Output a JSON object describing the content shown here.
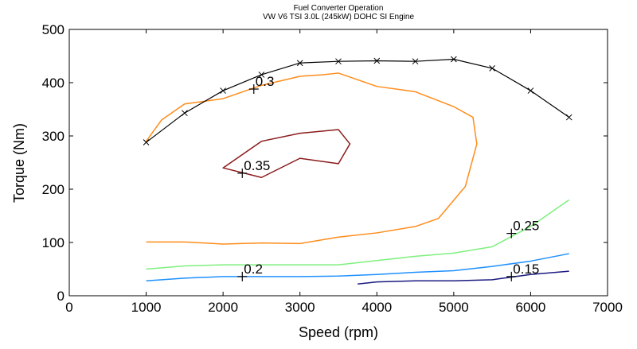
{
  "chart_data": {
    "type": "line",
    "title": "Fuel Converter Operation",
    "subtitle": "VW V6 TSI 3.0L (245kW) DOHC SI Engine",
    "xlabel": "Speed (rpm)",
    "ylabel": "Torque (Nm)",
    "xlim": [
      0,
      7000
    ],
    "ylim": [
      0,
      500
    ],
    "xticks": [
      0,
      1000,
      2000,
      3000,
      4000,
      5000,
      6000,
      7000
    ],
    "yticks": [
      0,
      100,
      200,
      300,
      400,
      500
    ],
    "grid": false,
    "max_torque_curve": {
      "color": "#000000",
      "marker": "x",
      "x": [
        1000,
        1500,
        2000,
        2500,
        3000,
        3500,
        4000,
        4500,
        5000,
        5500,
        6000,
        6500
      ],
      "y": [
        288,
        343,
        385,
        415,
        437,
        440,
        441,
        440,
        444,
        427,
        385,
        335
      ]
    },
    "contours": [
      {
        "level": "0.35",
        "color": "#8b1a1a",
        "closed": true,
        "x": [
          2000,
          2500,
          3000,
          3500,
          3650,
          3500,
          3000,
          2500,
          2000
        ],
        "y": [
          240,
          290,
          305,
          312,
          285,
          248,
          258,
          222,
          240
        ],
        "label_x": 2250,
        "label_y": 230
      },
      {
        "level": "0.3",
        "color": "#ff8c1a",
        "closed": false,
        "x": [
          1000,
          1200,
          1500,
          2000,
          2500,
          3000,
          3300,
          3500,
          4000,
          4500,
          5000,
          5250,
          5300,
          5150,
          4800,
          4500,
          4000,
          3500,
          3000,
          2500,
          2000,
          1500,
          1000
        ],
        "y": [
          290,
          330,
          360,
          370,
          395,
          412,
          415,
          418,
          393,
          383,
          355,
          335,
          285,
          205,
          145,
          130,
          118,
          110,
          98,
          99,
          97,
          101,
          101
        ],
        "label_x": 2400,
        "label_y": 388
      },
      {
        "level": "0.25",
        "color": "#7ef07e",
        "closed": false,
        "x": [
          1000,
          1500,
          2000,
          2500,
          3000,
          3500,
          4000,
          4500,
          5000,
          5500,
          5800,
          6000,
          6500
        ],
        "y": [
          50,
          56,
          58,
          58,
          58,
          58,
          66,
          74,
          80,
          92,
          115,
          130,
          180
        ],
        "label_x": 5750,
        "label_y": 117
      },
      {
        "level": "0.2",
        "color": "#1e90ff",
        "closed": false,
        "x": [
          1000,
          1500,
          2000,
          2500,
          3000,
          3500,
          4000,
          4500,
          5000,
          5500,
          6000,
          6500
        ],
        "y": [
          28,
          33,
          36,
          36,
          36,
          37,
          40,
          44,
          47,
          55,
          65,
          79
        ],
        "label_x": 2250,
        "label_y": 36
      },
      {
        "level": "0.15",
        "color": "#1a1a80",
        "closed": false,
        "x": [
          3750,
          4000,
          4500,
          5000,
          5500,
          6000,
          6500
        ],
        "y": [
          22,
          26,
          28,
          28,
          30,
          40,
          46
        ],
        "label_x": 5750,
        "label_y": 36
      }
    ]
  }
}
